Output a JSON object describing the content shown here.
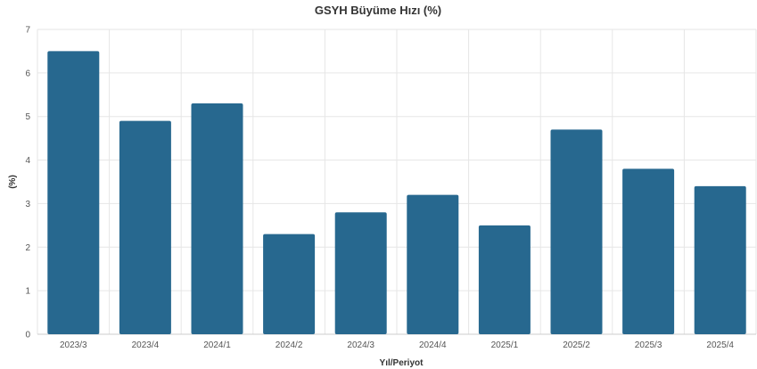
{
  "chart_data": {
    "type": "bar",
    "title": "GSYH Büyüme Hızı (%)",
    "xlabel": "Yıl/Periyot",
    "ylabel": "(%)",
    "categories": [
      "2023/3",
      "2023/4",
      "2024/1",
      "2024/2",
      "2024/3",
      "2024/4",
      "2025/1",
      "2025/2",
      "2025/3",
      "2025/4"
    ],
    "values": [
      6.5,
      4.9,
      5.3,
      2.3,
      2.8,
      3.2,
      2.5,
      4.7,
      3.8,
      3.4
    ],
    "ylim": [
      0,
      7
    ],
    "yticks": [
      0,
      1,
      2,
      3,
      4,
      5,
      6,
      7
    ],
    "grid": true,
    "legend": "none",
    "colors": {
      "bar": "#27688f",
      "grid": "#e6e6e6",
      "text": "#333333"
    }
  }
}
